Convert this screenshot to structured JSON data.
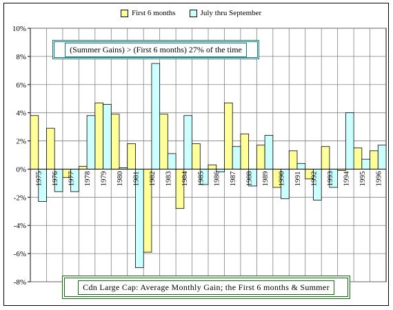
{
  "chart_data": {
    "type": "bar",
    "title": "Cdn Large Cap: Average Monthly Gain; the First 6 months & Summer",
    "annotation": "(Summer Gains) > (First 6 months) 27% of the time",
    "xlabel": "",
    "ylabel": "",
    "categories": [
      "1975",
      "1976",
      "1977",
      "1978",
      "1979",
      "1980",
      "1981",
      "1982",
      "1983",
      "1984",
      "1985",
      "1986",
      "1987",
      "1988",
      "1989",
      "1990",
      "1991",
      "1992",
      "1993",
      "1994",
      "1995",
      "1996"
    ],
    "series": [
      {
        "name": "First 6 months",
        "color": "#ffff99",
        "values": [
          3.8,
          2.9,
          -0.6,
          0.2,
          4.7,
          3.9,
          1.8,
          -5.9,
          3.9,
          -2.8,
          1.8,
          0.3,
          4.7,
          2.5,
          1.7,
          -1.3,
          1.3,
          -0.7,
          1.6,
          -0.1,
          1.5,
          1.3
        ]
      },
      {
        "name": "July thru September",
        "color": "#ccffff",
        "values": [
          -2.3,
          -1.6,
          -1.6,
          3.8,
          4.6,
          0.1,
          -7.0,
          7.5,
          1.1,
          3.8,
          -1.1,
          -0.2,
          1.6,
          -1.2,
          2.4,
          -2.1,
          0.4,
          -2.2,
          -1.3,
          4.0,
          0.7,
          1.7
        ]
      }
    ],
    "ylim": [
      -8,
      10
    ],
    "yticks": [
      -8,
      -6,
      -4,
      -2,
      0,
      2,
      4,
      6,
      8,
      10
    ],
    "ytick_labels": [
      "-8%",
      "-6%",
      "-4%",
      "-2%",
      "0%",
      "2%",
      "4%",
      "6%",
      "8%",
      "10%"
    ],
    "grid": true,
    "legend_position": "top"
  }
}
